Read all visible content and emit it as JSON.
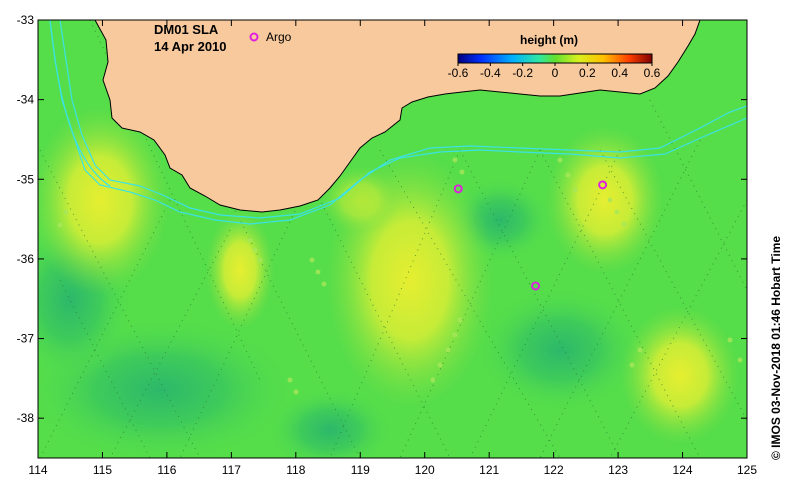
{
  "map": {
    "product": "DM01 SLA",
    "date": "14 Apr 2010",
    "argo_label": "Argo",
    "credit": "© IMOS 03-Nov-2018 01:46 Hobart Time",
    "colorbar": {
      "title": "height (m)",
      "ticks": [
        "-0.6",
        "-0.4",
        "-0.2",
        "0",
        "0.2",
        "0.4",
        "0.6"
      ],
      "min": -0.6,
      "max": 0.6
    },
    "lon_range": [
      114,
      125
    ],
    "lat_range": [
      -38.5,
      -33
    ],
    "x_ticks": [
      "114",
      "115",
      "116",
      "117",
      "118",
      "119",
      "120",
      "121",
      "122",
      "123",
      "124",
      "125"
    ],
    "y_ticks": [
      "-33",
      "-34",
      "-35",
      "-36",
      "-37",
      "-38"
    ],
    "colors": {
      "land": "#f7c99c",
      "ocean_base": "#55e055",
      "contour_line": "#3ce3e3",
      "argo_marker": "#e020e0"
    },
    "argo_floats": [
      {
        "lon": 120.52,
        "lat": -35.12
      },
      {
        "lon": 122.76,
        "lat": -35.07
      },
      {
        "lon": 121.72,
        "lat": -36.34
      }
    ]
  }
}
